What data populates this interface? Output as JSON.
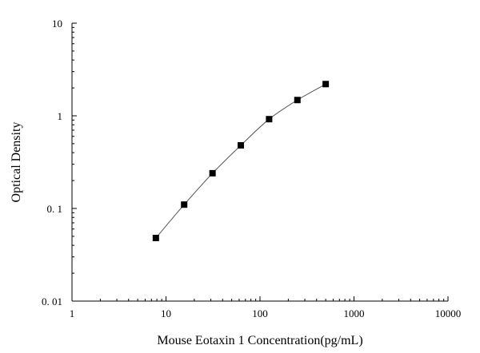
{
  "chart_data": {
    "type": "scatter",
    "title": "",
    "xlabel": "Mouse Eotaxin 1 Concentration(pg/mL)",
    "ylabel": "Optical Density",
    "x_scale": "log",
    "y_scale": "log",
    "xlim": [
      1,
      10000
    ],
    "ylim": [
      0.01,
      10
    ],
    "x_ticks": [
      {
        "value": 1,
        "label": "1"
      },
      {
        "value": 10,
        "label": "10"
      },
      {
        "value": 100,
        "label": "100"
      },
      {
        "value": 1000,
        "label": "1000"
      },
      {
        "value": 10000,
        "label": "10000"
      }
    ],
    "y_ticks": [
      {
        "value": 0.01,
        "label": "0. 01"
      },
      {
        "value": 0.1,
        "label": "0. 1"
      },
      {
        "value": 1,
        "label": "1"
      },
      {
        "value": 10,
        "label": "10"
      }
    ],
    "grid": false,
    "legend": "none",
    "series": [
      {
        "marker": "square",
        "line": "smooth",
        "color": "#000000",
        "line_color": "#555555",
        "x": [
          7.8,
          15.6,
          31.25,
          62.5,
          125,
          250,
          500
        ],
        "y": [
          0.048,
          0.11,
          0.24,
          0.48,
          0.92,
          1.48,
          2.2
        ]
      }
    ]
  }
}
